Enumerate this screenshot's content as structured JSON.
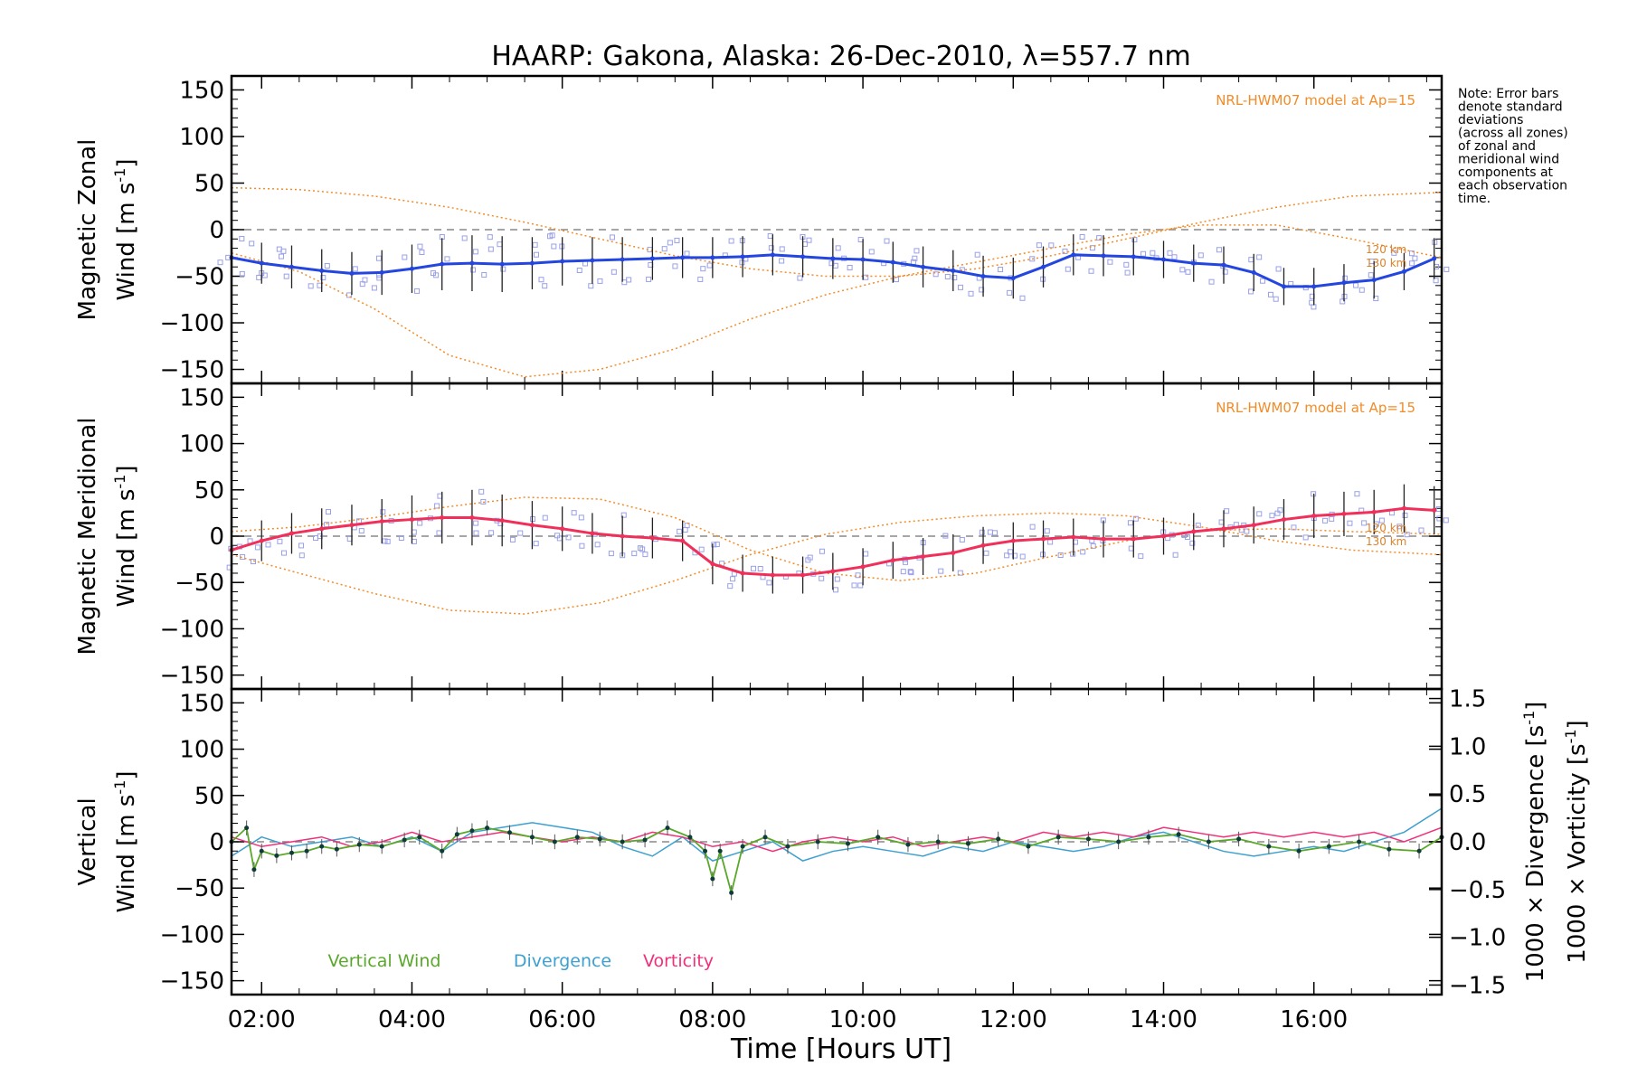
{
  "title": "HAARP: Gakona,  Alaska: 26-Dec-2010, λ=557.7 nm",
  "note_lines": [
    "Note: Error bars",
    "denote standard",
    "deviations",
    "(across all zones)",
    "of zonal and",
    "meridional wind",
    "components at",
    "each observation",
    "time."
  ],
  "colors": {
    "zonal": "#2446e0",
    "meridional": "#f0305a",
    "vertical": "#5aa82a",
    "divergence": "#3ea0d0",
    "vorticity": "#f0307a",
    "model": "#f28c28",
    "zone_points": "#9aa0e8",
    "zero_line": "#888888"
  },
  "chart_data": [
    {
      "type": "line",
      "panel": "zonal",
      "ylabel_line1": "Magnetic Zonal",
      "ylabel_line2": "Wind",
      "ylabel_units": "[m s",
      "ylabel_units_sup": "-1",
      "ylabel_units_end": "]",
      "model_label": "NRL-HWM07 model at Ap=15",
      "model_alt_labels": [
        "120 km",
        "130 km"
      ],
      "xlim": [
        1.6,
        17.7
      ],
      "ylim": [
        -165,
        165
      ],
      "yticks": [
        -150,
        -100,
        -50,
        0,
        50,
        100,
        150
      ],
      "mean_series": {
        "x": [
          1.6,
          2.0,
          2.4,
          2.8,
          3.2,
          3.6,
          4.0,
          4.4,
          4.8,
          5.2,
          5.6,
          6.0,
          6.4,
          6.8,
          7.2,
          7.6,
          8.0,
          8.4,
          8.8,
          9.2,
          9.6,
          10.0,
          10.4,
          10.8,
          11.2,
          11.6,
          12.0,
          12.4,
          12.8,
          13.2,
          13.6,
          14.0,
          14.4,
          14.8,
          15.2,
          15.6,
          16.0,
          16.4,
          16.8,
          17.2,
          17.6
        ],
        "y": [
          -30,
          -36,
          -40,
          -44,
          -47,
          -46,
          -42,
          -37,
          -36,
          -37,
          -36,
          -34,
          -33,
          -32,
          -31,
          -30,
          -30,
          -29,
          -27,
          -29,
          -31,
          -32,
          -35,
          -40,
          -44,
          -50,
          -52,
          -40,
          -27,
          -28,
          -29,
          -32,
          -36,
          -38,
          -46,
          -61,
          -61,
          -57,
          -54,
          -45,
          -31
        ],
        "errors": [
          22,
          22,
          23,
          23,
          23,
          24,
          26,
          28,
          30,
          30,
          28,
          26,
          25,
          24,
          23,
          22,
          22,
          22,
          22,
          22,
          22,
          22,
          22,
          22,
          22,
          22,
          22,
          22,
          22,
          22,
          20,
          20,
          20,
          20,
          20,
          20,
          20,
          20,
          20,
          20,
          22
        ]
      },
      "model_120km": {
        "x": [
          1.6,
          2.5,
          3.5,
          4.5,
          5.5,
          6.5,
          7.5,
          8.5,
          9.5,
          10.5,
          11.5,
          12.5,
          13.5,
          14.5,
          15.5,
          16.5,
          17.7
        ],
        "y": [
          45,
          43,
          36,
          24,
          8,
          -10,
          -28,
          -42,
          -50,
          -50,
          -42,
          -28,
          -10,
          8,
          24,
          36,
          40
        ]
      },
      "model_130km": {
        "x": [
          1.6,
          2.5,
          3.5,
          4.5,
          5.5,
          6.5,
          7.5,
          8.5,
          9.5,
          10.5,
          11.5,
          12.5,
          13.5,
          14.5,
          15.5,
          16.5,
          17.7
        ],
        "y": [
          -25,
          -45,
          -85,
          -135,
          -158,
          -150,
          -128,
          -96,
          -70,
          -50,
          -35,
          -20,
          -5,
          5,
          5,
          -10,
          -30
        ]
      }
    },
    {
      "type": "line",
      "panel": "meridional",
      "ylabel_line1": "Magnetic Meridional",
      "ylabel_line2": "Wind",
      "ylabel_units": "[m s",
      "ylabel_units_sup": "-1",
      "ylabel_units_end": "]",
      "model_label": "NRL-HWM07 model at Ap=15",
      "model_alt_labels": [
        "120 km",
        "130 km"
      ],
      "xlim": [
        1.6,
        17.7
      ],
      "ylim": [
        -165,
        165
      ],
      "yticks": [
        -150,
        -100,
        -50,
        0,
        50,
        100,
        150
      ],
      "mean_series": {
        "x": [
          1.6,
          2.0,
          2.4,
          2.8,
          3.2,
          3.6,
          4.0,
          4.4,
          4.8,
          5.2,
          5.6,
          6.0,
          6.4,
          6.8,
          7.2,
          7.6,
          8.0,
          8.4,
          8.8,
          9.2,
          9.6,
          10.0,
          10.4,
          10.8,
          11.2,
          11.6,
          12.0,
          12.4,
          12.8,
          13.2,
          13.6,
          14.0,
          14.4,
          14.8,
          15.2,
          15.6,
          16.0,
          16.4,
          16.8,
          17.2,
          17.6
        ],
        "y": [
          -15,
          -5,
          3,
          8,
          12,
          16,
          18,
          20,
          20,
          17,
          12,
          8,
          3,
          0,
          -2,
          -5,
          -30,
          -40,
          -42,
          -42,
          -38,
          -33,
          -26,
          -22,
          -18,
          -10,
          -5,
          -3,
          -1,
          -3,
          -3,
          0,
          5,
          8,
          12,
          18,
          22,
          24,
          26,
          30,
          28
        ],
        "errors": [
          22,
          22,
          22,
          22,
          22,
          24,
          26,
          28,
          30,
          28,
          26,
          24,
          22,
          22,
          22,
          22,
          22,
          20,
          20,
          20,
          20,
          20,
          20,
          20,
          20,
          20,
          20,
          20,
          20,
          20,
          20,
          20,
          20,
          20,
          20,
          22,
          24,
          24,
          24,
          26,
          26
        ]
      },
      "model_120km": {
        "x": [
          1.6,
          2.5,
          3.5,
          4.5,
          5.5,
          6.5,
          7.5,
          8.5,
          9.5,
          10.5,
          11.5,
          12.5,
          13.5,
          14.5,
          15.5,
          16.5,
          17.7
        ],
        "y": [
          5,
          10,
          20,
          32,
          42,
          40,
          20,
          -15,
          -40,
          -48,
          -40,
          -22,
          -5,
          6,
          8,
          5,
          2
        ]
      },
      "model_130km": {
        "x": [
          1.6,
          2.5,
          3.5,
          4.5,
          5.5,
          6.5,
          7.5,
          8.5,
          9.5,
          10.5,
          11.5,
          12.5,
          13.5,
          14.5,
          15.5,
          16.5,
          17.7
        ],
        "y": [
          -20,
          -40,
          -62,
          -80,
          -84,
          -72,
          -48,
          -20,
          2,
          15,
          22,
          25,
          22,
          10,
          -5,
          -15,
          -20
        ]
      }
    },
    {
      "type": "line",
      "panel": "vertical",
      "ylabel_line1": "Vertical",
      "ylabel_line2": "Wind",
      "ylabel_units": "[m s",
      "ylabel_units_sup": "-1",
      "ylabel_units_end": "]",
      "right_ylabel_div": "1000 × Divergence",
      "right_ylabel_div_units": "[s",
      "right_ylabel_vort": "1000 × Vorticity",
      "right_ylabel_vort_units": "[s",
      "right_ylabel_sup": "-1",
      "right_ylabel_end": "]",
      "xlim": [
        1.6,
        17.7
      ],
      "ylim": [
        -165,
        165
      ],
      "yticks": [
        -150,
        -100,
        -50,
        0,
        50,
        100,
        150
      ],
      "right_ylim": [
        -1.6,
        1.6
      ],
      "right_yticks": [
        "1.5",
        "1.0",
        "0.5",
        "0.0",
        "−0.5",
        "−1.0",
        "−1.5"
      ],
      "right_ytick_values": [
        1.5,
        1.0,
        0.5,
        0.0,
        -0.5,
        -1.0,
        -1.5
      ],
      "xticks": [
        2,
        4,
        6,
        8,
        10,
        12,
        14,
        16
      ],
      "xtick_labels": [
        "02:00",
        "04:00",
        "06:00",
        "08:00",
        "10:00",
        "12:00",
        "14:00",
        "16:00"
      ],
      "xlabel": "Time [Hours UT]",
      "legend": [
        "Vertical Wind",
        "Divergence",
        "Vorticity"
      ],
      "vertical_wind": {
        "x": [
          1.6,
          1.8,
          1.9,
          2.0,
          2.2,
          2.4,
          2.6,
          2.8,
          3.0,
          3.3,
          3.6,
          3.9,
          4.1,
          4.4,
          4.6,
          4.8,
          5.0,
          5.3,
          5.6,
          5.9,
          6.2,
          6.5,
          6.8,
          7.1,
          7.4,
          7.7,
          7.9,
          8.0,
          8.1,
          8.25,
          8.4,
          8.7,
          9.0,
          9.4,
          9.8,
          10.2,
          10.6,
          11.0,
          11.4,
          11.8,
          12.2,
          12.6,
          13.0,
          13.4,
          13.8,
          14.2,
          14.6,
          15.0,
          15.4,
          15.8,
          16.2,
          16.6,
          17.0,
          17.4,
          17.7
        ],
        "y": [
          0,
          15,
          -30,
          -10,
          -15,
          -12,
          -10,
          -5,
          -8,
          -3,
          -5,
          2,
          5,
          -10,
          8,
          12,
          15,
          10,
          5,
          0,
          5,
          3,
          0,
          2,
          15,
          5,
          -10,
          -40,
          -10,
          -55,
          -5,
          5,
          -5,
          0,
          -2,
          5,
          -3,
          0,
          -2,
          3,
          -5,
          5,
          3,
          0,
          5,
          8,
          0,
          3,
          -5,
          -10,
          -5,
          0,
          -8,
          -10,
          5
        ]
      },
      "divergence": {
        "x": [
          1.6,
          2.0,
          2.4,
          2.8,
          3.2,
          3.6,
          4.0,
          4.4,
          4.8,
          5.2,
          5.6,
          6.0,
          6.4,
          6.8,
          7.2,
          7.6,
          8.0,
          8.4,
          8.8,
          9.2,
          9.6,
          10.0,
          10.4,
          10.8,
          11.2,
          11.6,
          12.0,
          12.4,
          12.8,
          13.2,
          13.6,
          14.0,
          14.4,
          14.8,
          15.2,
          15.6,
          16.0,
          16.4,
          16.8,
          17.2,
          17.7
        ],
        "y": [
          -0.15,
          0.05,
          -0.05,
          0.0,
          0.05,
          -0.05,
          0.05,
          -0.1,
          0.1,
          0.15,
          0.2,
          0.15,
          0.1,
          -0.05,
          -0.15,
          0.05,
          -0.2,
          -0.1,
          0.0,
          -0.2,
          -0.1,
          -0.05,
          -0.1,
          -0.15,
          -0.05,
          -0.1,
          0.0,
          -0.05,
          -0.1,
          -0.05,
          0.05,
          0.1,
          0.0,
          -0.1,
          -0.15,
          -0.1,
          -0.05,
          -0.1,
          0.0,
          0.1,
          0.35
        ]
      },
      "vorticity": {
        "x": [
          1.6,
          2.0,
          2.4,
          2.8,
          3.2,
          3.6,
          4.0,
          4.4,
          4.8,
          5.2,
          5.6,
          6.0,
          6.4,
          6.8,
          7.2,
          7.6,
          8.0,
          8.4,
          8.8,
          9.2,
          9.6,
          10.0,
          10.4,
          10.8,
          11.2,
          11.6,
          12.0,
          12.4,
          12.8,
          13.2,
          13.6,
          14.0,
          14.4,
          14.8,
          15.2,
          15.6,
          16.0,
          16.4,
          16.8,
          17.2,
          17.7
        ],
        "y": [
          0.05,
          -0.05,
          0.0,
          0.05,
          -0.05,
          0.0,
          0.1,
          0.0,
          0.05,
          0.1,
          0.05,
          0.0,
          0.05,
          0.0,
          0.1,
          0.05,
          -0.05,
          0.0,
          -0.1,
          0.0,
          0.05,
          0.0,
          0.05,
          -0.05,
          0.0,
          0.05,
          0.0,
          0.1,
          0.05,
          0.1,
          0.05,
          0.15,
          0.1,
          0.05,
          0.1,
          0.05,
          0.1,
          0.05,
          0.1,
          0.0,
          0.15
        ]
      }
    }
  ]
}
